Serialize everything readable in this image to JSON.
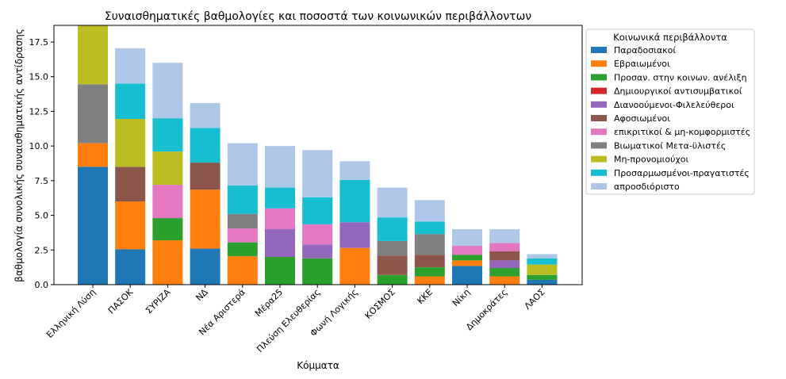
{
  "chart_data": {
    "type": "bar",
    "stacked": true,
    "title": "Συναισθηματικές βαθμολογίες και ποσοστά των κοινωνικών περιβάλλοντων",
    "xlabel": "Κόμματα",
    "ylabel": "βαθμολογία συνολικής συναισθηματικής αντίδρασης",
    "ylim": [
      0,
      18.7
    ],
    "yticks": [
      0.0,
      2.5,
      5.0,
      7.5,
      10.0,
      12.5,
      15.0,
      17.5
    ],
    "ytick_labels": [
      "0.0",
      "2.5",
      "5.0",
      "7.5",
      "10.0",
      "12.5",
      "15.0",
      "17.5"
    ],
    "grid": false,
    "legend_title": "Κοινωνικά περιβάλλοντα",
    "legend_position": "outside-right-top",
    "categories": [
      "Ελληνική Λύση",
      "ΠΑΣΟΚ",
      "ΣΥΡΙΖΑ",
      "ΝΔ",
      "Νέα Αριστερά",
      "Μέρα25",
      "Πλεύση Ελευθερίας",
      "Φωνή Λογικής",
      "ΚΟΣΜΟΣ",
      "ΚΚΕ",
      "Νίκη",
      "Δημοκράτες",
      "ΛΑΟΣ"
    ],
    "series": [
      {
        "name": "Παραδοσιακοί",
        "color": "#1f77b4",
        "values": [
          8.5,
          2.55,
          0,
          2.6,
          0,
          0,
          0,
          0,
          0,
          0,
          1.35,
          0,
          0.35
        ]
      },
      {
        "name": "Εβραιωμένοι",
        "color": "#ff7f0e",
        "values": [
          1.7,
          3.45,
          3.2,
          4.25,
          2.05,
          0,
          0,
          2.65,
          0,
          0.6,
          0.4,
          0.6,
          0
        ]
      },
      {
        "name": "Προσαν. στην κοινων. ανέλιξη",
        "color": "#2ca02c",
        "values": [
          0,
          0,
          1.6,
          0,
          1.0,
          2.0,
          1.9,
          0,
          0.7,
          0.65,
          0.4,
          0.6,
          0.35
        ]
      },
      {
        "name": "Δημιουργικοί αντισυμβατικοί",
        "color": "#d62728",
        "values": [
          0,
          0,
          0,
          0,
          0,
          0,
          0,
          0,
          0,
          0,
          0,
          0,
          0
        ]
      },
      {
        "name": "Διανοούμενοι-Φιλελεύθεροι",
        "color": "#9467bd",
        "values": [
          0,
          0,
          0,
          0,
          0,
          2.0,
          1.0,
          1.85,
          0,
          0,
          0,
          0.55,
          0
        ]
      },
      {
        "name": "Αφοσιωμένοι",
        "color": "#8c564b",
        "values": [
          0,
          2.5,
          0,
          1.95,
          0,
          0,
          0,
          0,
          1.4,
          0.9,
          0,
          0.65,
          0
        ]
      },
      {
        "name": "επικριτικοί & μη-κομφορμιστές",
        "color": "#e377c2",
        "values": [
          0,
          0,
          2.4,
          0,
          1.0,
          1.5,
          1.45,
          0,
          0,
          0,
          0.65,
          0.6,
          0
        ]
      },
      {
        "name": "Βιωματικοί Μετα-ϋλιστές",
        "color": "#7f7f7f",
        "values": [
          4.25,
          0,
          0,
          0,
          1.05,
          0,
          0,
          0,
          1.05,
          1.5,
          0,
          0,
          0
        ]
      },
      {
        "name": "Μη-προνομιούχοι",
        "color": "#bcbd22",
        "values": [
          4.25,
          3.45,
          2.4,
          0,
          0,
          0,
          0,
          0,
          0,
          0,
          0,
          0,
          0.75
        ]
      },
      {
        "name": "Προσαρμωσμένοι-πραγατιστές",
        "color": "#17becf",
        "values": [
          0,
          2.55,
          2.4,
          2.5,
          2.05,
          1.5,
          1.95,
          3.05,
          1.7,
          0.9,
          0,
          0,
          0.45
        ]
      },
      {
        "name": "απροσδιόριστο",
        "color": "#aec7e8",
        "values": [
          0,
          2.55,
          4.0,
          1.8,
          3.05,
          3.0,
          3.4,
          1.35,
          2.15,
          1.55,
          1.2,
          1.0,
          0.3
        ]
      }
    ]
  }
}
